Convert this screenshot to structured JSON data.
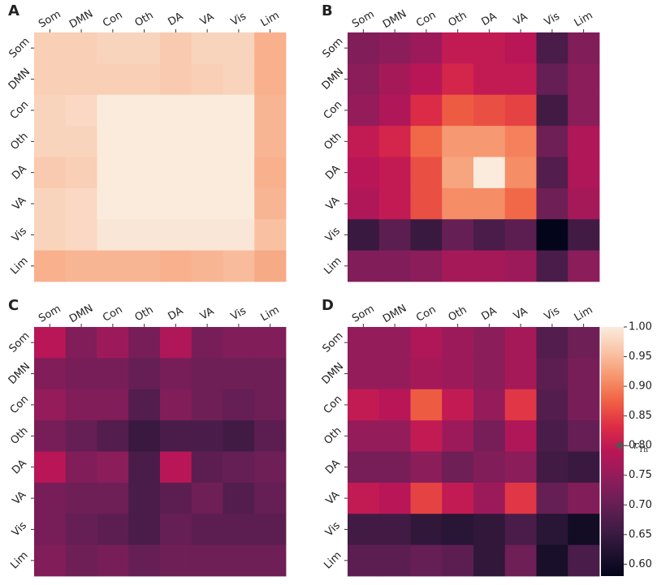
{
  "chart_data": [
    {
      "type": "heatmap",
      "panel_label": "A",
      "x_categories": [
        "Som",
        "DMN",
        "Con",
        "Oth",
        "DA",
        "VA",
        "Vis",
        "Lim"
      ],
      "y_categories": [
        "Som",
        "DMN",
        "Con",
        "Oth",
        "DA",
        "VA",
        "Vis",
        "Lim"
      ],
      "values": [
        [
          0.97,
          0.97,
          0.975,
          0.975,
          0.965,
          0.975,
          0.975,
          0.94
        ],
        [
          0.97,
          0.97,
          0.97,
          0.97,
          0.965,
          0.97,
          0.975,
          0.94
        ],
        [
          0.975,
          0.98,
          1.0,
          1.0,
          1.0,
          1.0,
          1.0,
          0.945
        ],
        [
          0.975,
          0.975,
          1.0,
          1.0,
          1.0,
          1.0,
          1.0,
          0.945
        ],
        [
          0.965,
          0.97,
          1.0,
          1.0,
          1.0,
          1.0,
          1.0,
          0.94
        ],
        [
          0.975,
          0.98,
          1.0,
          1.0,
          1.0,
          1.0,
          1.0,
          0.945
        ],
        [
          0.975,
          0.98,
          0.995,
          0.995,
          0.995,
          0.995,
          0.995,
          0.955
        ],
        [
          0.94,
          0.945,
          0.945,
          0.945,
          0.94,
          0.945,
          0.95,
          0.935
        ]
      ]
    },
    {
      "type": "heatmap",
      "panel_label": "B",
      "x_categories": [
        "Som",
        "DMN",
        "Con",
        "Oth",
        "DA",
        "VA",
        "Vis",
        "Lim"
      ],
      "y_categories": [
        "Som",
        "DMN",
        "Con",
        "Oth",
        "DA",
        "VA",
        "Vis",
        "Lim"
      ],
      "values": [
        [
          0.73,
          0.74,
          0.76,
          0.8,
          0.8,
          0.79,
          0.67,
          0.73
        ],
        [
          0.74,
          0.77,
          0.79,
          0.82,
          0.8,
          0.8,
          0.7,
          0.74
        ],
        [
          0.75,
          0.78,
          0.83,
          0.87,
          0.86,
          0.85,
          0.66,
          0.74
        ],
        [
          0.8,
          0.82,
          0.88,
          0.92,
          0.92,
          0.9,
          0.71,
          0.78
        ],
        [
          0.79,
          0.8,
          0.86,
          0.93,
          1.0,
          0.91,
          0.68,
          0.78
        ],
        [
          0.78,
          0.8,
          0.86,
          0.91,
          0.91,
          0.88,
          0.71,
          0.77
        ],
        [
          0.65,
          0.69,
          0.65,
          0.7,
          0.67,
          0.69,
          0.58,
          0.66
        ],
        [
          0.73,
          0.73,
          0.74,
          0.77,
          0.77,
          0.76,
          0.67,
          0.74
        ]
      ]
    },
    {
      "type": "heatmap",
      "panel_label": "C",
      "x_categories": [
        "Som",
        "DMN",
        "Con",
        "Oth",
        "DA",
        "VA",
        "Vis",
        "Lim"
      ],
      "y_categories": [
        "Som",
        "DMN",
        "Con",
        "Oth",
        "DA",
        "VA",
        "Vis",
        "Lim"
      ],
      "values": [
        [
          0.79,
          0.73,
          0.76,
          0.72,
          0.78,
          0.72,
          0.73,
          0.73
        ],
        [
          0.73,
          0.72,
          0.72,
          0.7,
          0.72,
          0.71,
          0.71,
          0.71
        ],
        [
          0.75,
          0.73,
          0.73,
          0.68,
          0.73,
          0.71,
          0.7,
          0.71
        ],
        [
          0.72,
          0.7,
          0.68,
          0.65,
          0.67,
          0.67,
          0.66,
          0.69
        ],
        [
          0.79,
          0.73,
          0.74,
          0.67,
          0.79,
          0.69,
          0.7,
          0.71
        ],
        [
          0.72,
          0.71,
          0.71,
          0.67,
          0.69,
          0.71,
          0.68,
          0.7
        ],
        [
          0.72,
          0.7,
          0.69,
          0.67,
          0.7,
          0.69,
          0.69,
          0.69
        ],
        [
          0.73,
          0.71,
          0.72,
          0.7,
          0.71,
          0.71,
          0.71,
          0.71
        ]
      ]
    },
    {
      "type": "heatmap",
      "panel_label": "D",
      "x_categories": [
        "Som",
        "DMN",
        "Con",
        "Oth",
        "DA",
        "VA",
        "Vis",
        "Lim"
      ],
      "y_categories": [
        "Som",
        "DMN",
        "Con",
        "Oth",
        "DA",
        "VA",
        "Vis",
        "Lim"
      ],
      "values": [
        [
          0.75,
          0.75,
          0.78,
          0.76,
          0.74,
          0.77,
          0.68,
          0.71
        ],
        [
          0.75,
          0.75,
          0.77,
          0.76,
          0.74,
          0.77,
          0.69,
          0.72
        ],
        [
          0.8,
          0.79,
          0.87,
          0.8,
          0.75,
          0.84,
          0.68,
          0.72
        ],
        [
          0.75,
          0.75,
          0.8,
          0.76,
          0.72,
          0.78,
          0.67,
          0.7
        ],
        [
          0.72,
          0.72,
          0.74,
          0.71,
          0.73,
          0.74,
          0.66,
          0.65
        ],
        [
          0.8,
          0.79,
          0.85,
          0.8,
          0.76,
          0.84,
          0.7,
          0.73
        ],
        [
          0.66,
          0.66,
          0.64,
          0.63,
          0.64,
          0.67,
          0.63,
          0.6
        ],
        [
          0.69,
          0.69,
          0.7,
          0.69,
          0.64,
          0.71,
          0.61,
          0.67
        ]
      ]
    },
    {
      "type": "colorbar",
      "colormap": "rocket",
      "ylim": [
        0.58,
        1.0
      ],
      "yticks": [
        {
          "value": 0.6,
          "label": "0.60"
        },
        {
          "value": 0.65,
          "label": "0.65"
        },
        {
          "value": 0.7,
          "label": "0.70"
        },
        {
          "value": 0.75,
          "label": "0.75"
        },
        {
          "value": 0.8,
          "label": "0.80"
        },
        {
          "value": 0.85,
          "label": "0.85"
        },
        {
          "value": 0.9,
          "label": "0.90"
        },
        {
          "value": 0.95,
          "label": "0.95"
        },
        {
          "value": 1.0,
          "label": "1.00"
        }
      ],
      "annotation": {
        "symbol": "r",
        "subscript": "Th",
        "value": 0.8
      }
    }
  ]
}
